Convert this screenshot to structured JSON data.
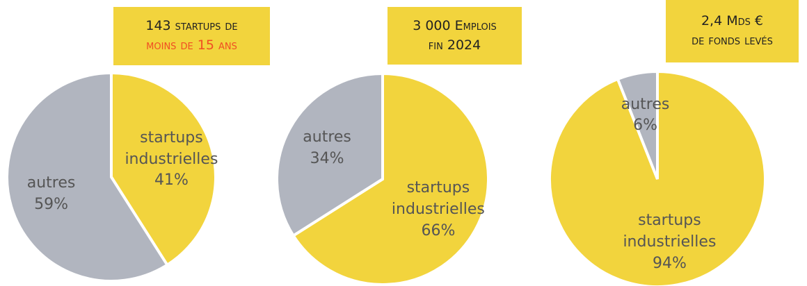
{
  "chart_data": [
    {
      "type": "pie",
      "title": [
        "143 startups de",
        "moins de 15 ans"
      ],
      "title_colors": [
        "#222222",
        "#f04e23"
      ],
      "categories": [
        "startups industrielles",
        "autres"
      ],
      "values": [
        41,
        59
      ],
      "value_labels": [
        "41%",
        "59%"
      ],
      "colors": [
        "#f2d43d",
        "#b1b5bf"
      ]
    },
    {
      "type": "pie",
      "title": [
        "3 000 Emplois",
        "fin 2024"
      ],
      "title_colors": [
        "#222222",
        "#222222"
      ],
      "categories": [
        "startups industrielles",
        "autres"
      ],
      "values": [
        66,
        34
      ],
      "value_labels": [
        "66%",
        "34%"
      ],
      "colors": [
        "#f2d43d",
        "#b1b5bf"
      ]
    },
    {
      "type": "pie",
      "title": [
        "2,4 Mds €",
        "de fonds levés"
      ],
      "title_colors": [
        "#222222",
        "#222222"
      ],
      "categories": [
        "startups industrielles",
        "autres"
      ],
      "values": [
        94,
        6
      ],
      "value_labels": [
        "94%",
        "6%"
      ],
      "colors": [
        "#f2d43d",
        "#b1b5bf"
      ]
    }
  ]
}
